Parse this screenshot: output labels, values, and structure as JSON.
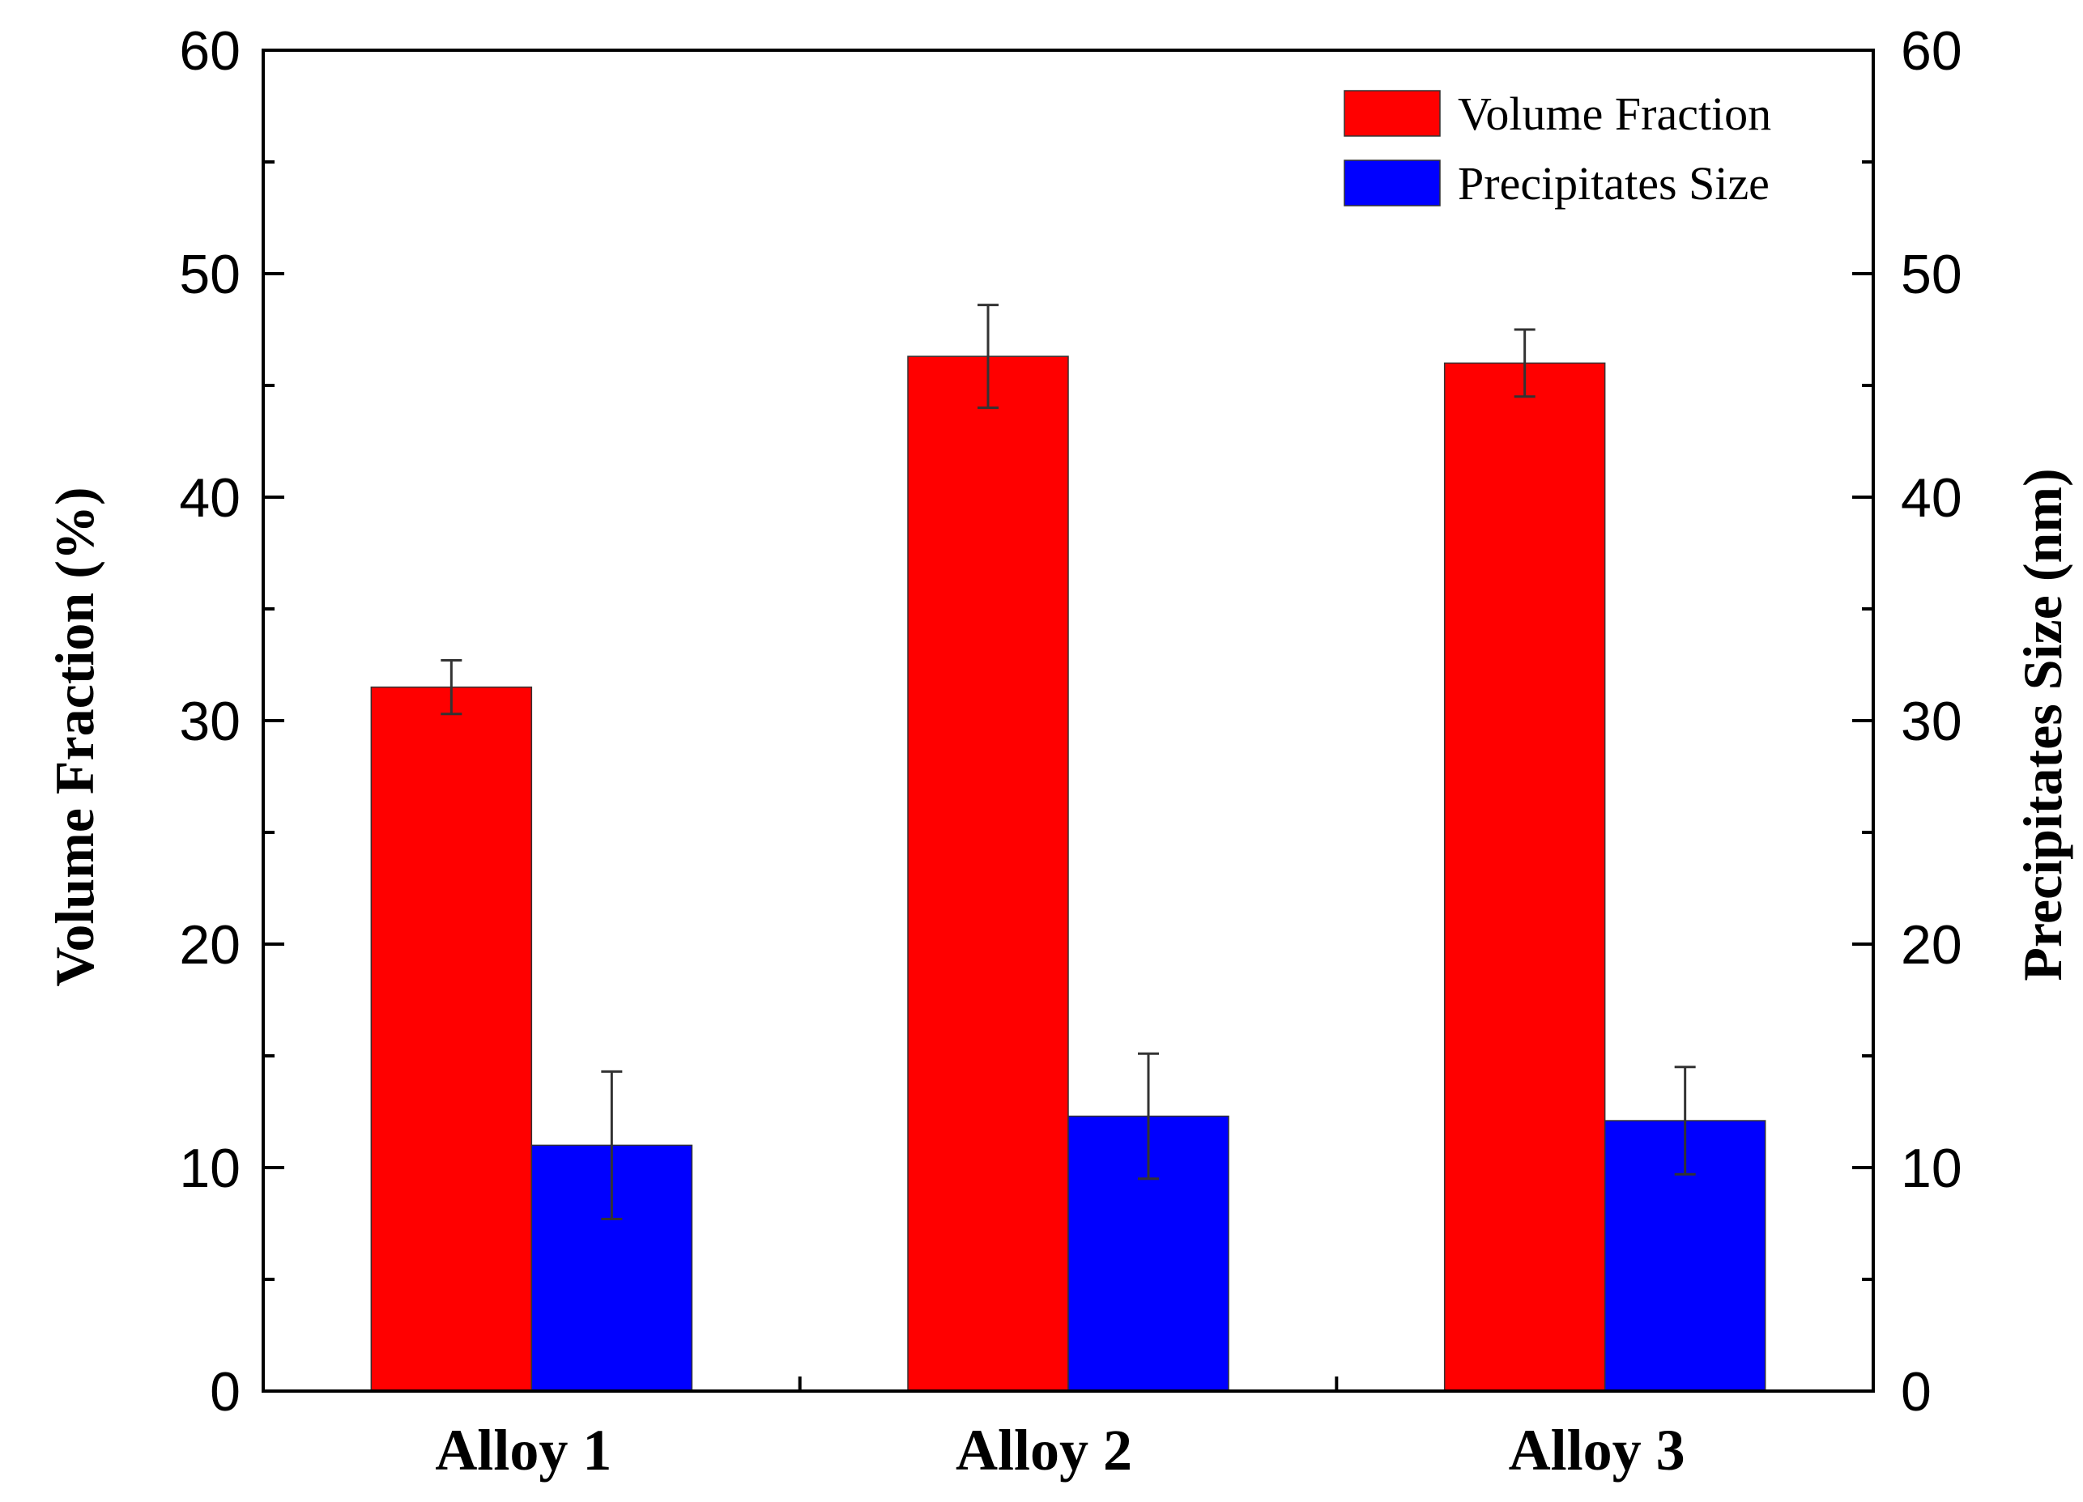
{
  "chart_data": {
    "type": "bar",
    "categories": [
      "Alloy 1",
      "Alloy 2",
      "Alloy 3"
    ],
    "series": [
      {
        "name": "Volume Fraction",
        "axis": "left",
        "color": "#ff0000",
        "values": [
          31.5,
          46.3,
          46.0
        ],
        "errors": [
          1.2,
          2.3,
          1.5
        ]
      },
      {
        "name": "Precipitates Size",
        "axis": "right",
        "color": "#0000ff",
        "values": [
          11.0,
          12.3,
          12.1
        ],
        "errors": [
          3.3,
          2.8,
          2.4
        ]
      }
    ],
    "ylabel_left": "Volume Fraction (%)",
    "ylabel_right": "Precipitates Size (nm)",
    "ylim_left": [
      0,
      60
    ],
    "ylim_right": [
      0,
      60
    ],
    "yticks_left": [
      0,
      10,
      20,
      30,
      40,
      50,
      60
    ],
    "yticks_right": [
      0,
      10,
      20,
      30,
      40,
      50,
      60
    ],
    "legend_position": "top-right",
    "grid": false
  }
}
